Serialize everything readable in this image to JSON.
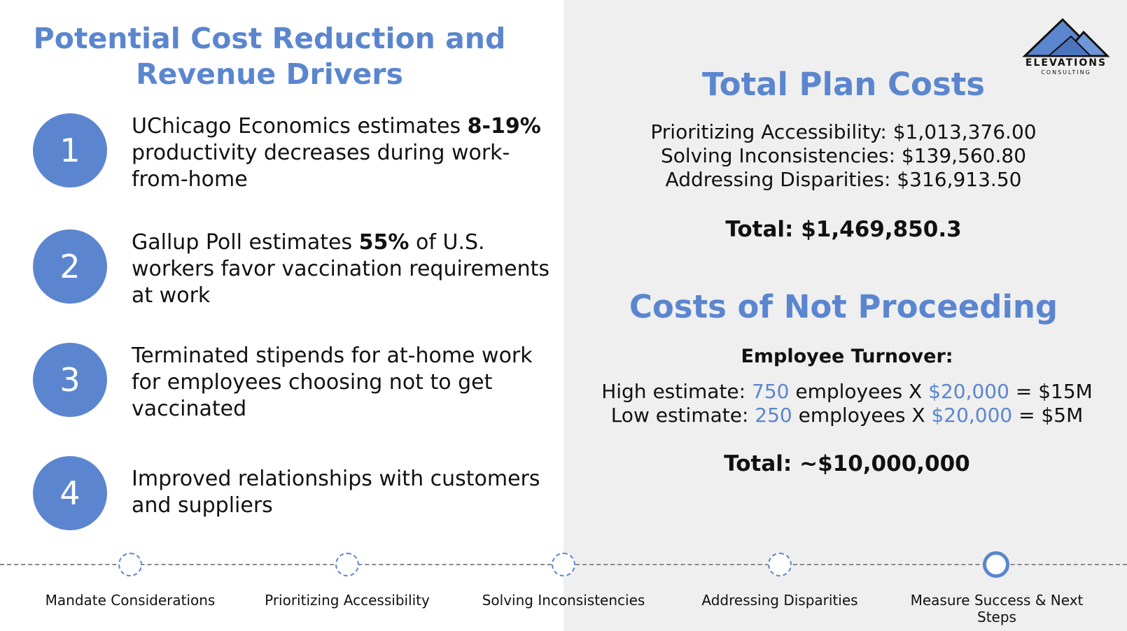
{
  "left": {
    "title_line1": "Potential Cost Reduction and",
    "title_line2": "Revenue Drivers",
    "drivers": [
      {
        "num": "1",
        "pre": "UChicago Economics estimates ",
        "bold": "8-19%",
        "post": " productivity decreases during work-from-home"
      },
      {
        "num": "2",
        "pre": "Gallup Poll estimates ",
        "bold": "55%",
        "post": " of U.S. workers favor vaccination requirements at work"
      },
      {
        "num": "3",
        "pre": "Terminated stipends for at-home work for employees choosing not to get vaccinated",
        "bold": "",
        "post": ""
      },
      {
        "num": "4",
        "pre": "Improved relationships with customers and suppliers",
        "bold": "",
        "post": ""
      }
    ]
  },
  "logo": {
    "word": "ELEVATIONS",
    "sub": "CONSULTING"
  },
  "plan_costs": {
    "title": "Total Plan Costs",
    "lines": [
      "Prioritizing Accessibility: $1,013,376.00",
      "Solving Inconsistencies: $139,560.80",
      "Addressing Disparities: $316,913.50"
    ],
    "total": "Total: $1,469,850.3"
  },
  "not_proceeding": {
    "title": "Costs of Not Proceeding",
    "turnover_label": "Employee Turnover:",
    "high": {
      "prefix": "High estimate: ",
      "count": "750",
      "mid": " employees X  ",
      "cost": "$20,000",
      "result": " = $15M"
    },
    "low": {
      "prefix": "Low estimate: ",
      "count": "250",
      "mid": " employees X ",
      "cost": "$20,000",
      "result": " = $5M"
    },
    "total": "Total: ~$10,000,000"
  },
  "timeline": {
    "steps": [
      "Mandate Considerations",
      "Prioritizing Accessibility",
      "Solving Inconsistencies",
      "Addressing Disparities",
      "Measure Success & Next Steps"
    ],
    "active_step": "Measure Success & Next Steps"
  },
  "colors": {
    "accent": "#5b86cf",
    "panel": "#efefef",
    "text": "#111111"
  }
}
